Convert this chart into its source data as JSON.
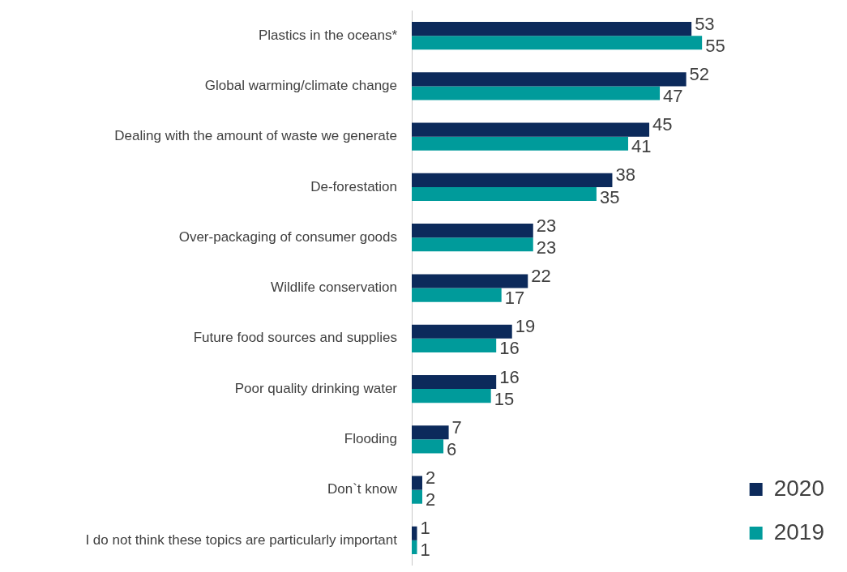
{
  "chart_data": {
    "type": "bar",
    "orientation": "horizontal",
    "categories": [
      "Plastics in the oceans*",
      "Global warming/climate change",
      "Dealing with the amount of waste we generate",
      "De-forestation",
      "Over-packaging of consumer goods",
      "Wildlife conservation",
      "Future food sources and supplies",
      "Poor quality drinking water",
      "Flooding",
      "Don`t know",
      "I do not think these topics are particularly important"
    ],
    "series": [
      {
        "name": "2020",
        "color": "#0c2a5b",
        "values": [
          53,
          52,
          45,
          38,
          23,
          22,
          19,
          16,
          7,
          2,
          1
        ]
      },
      {
        "name": "2019",
        "color": "#009b9b",
        "values": [
          55,
          47,
          41,
          35,
          23,
          17,
          16,
          15,
          6,
          2,
          1
        ]
      }
    ],
    "data_labels": true,
    "legend": "bottom right",
    "grid": false
  }
}
